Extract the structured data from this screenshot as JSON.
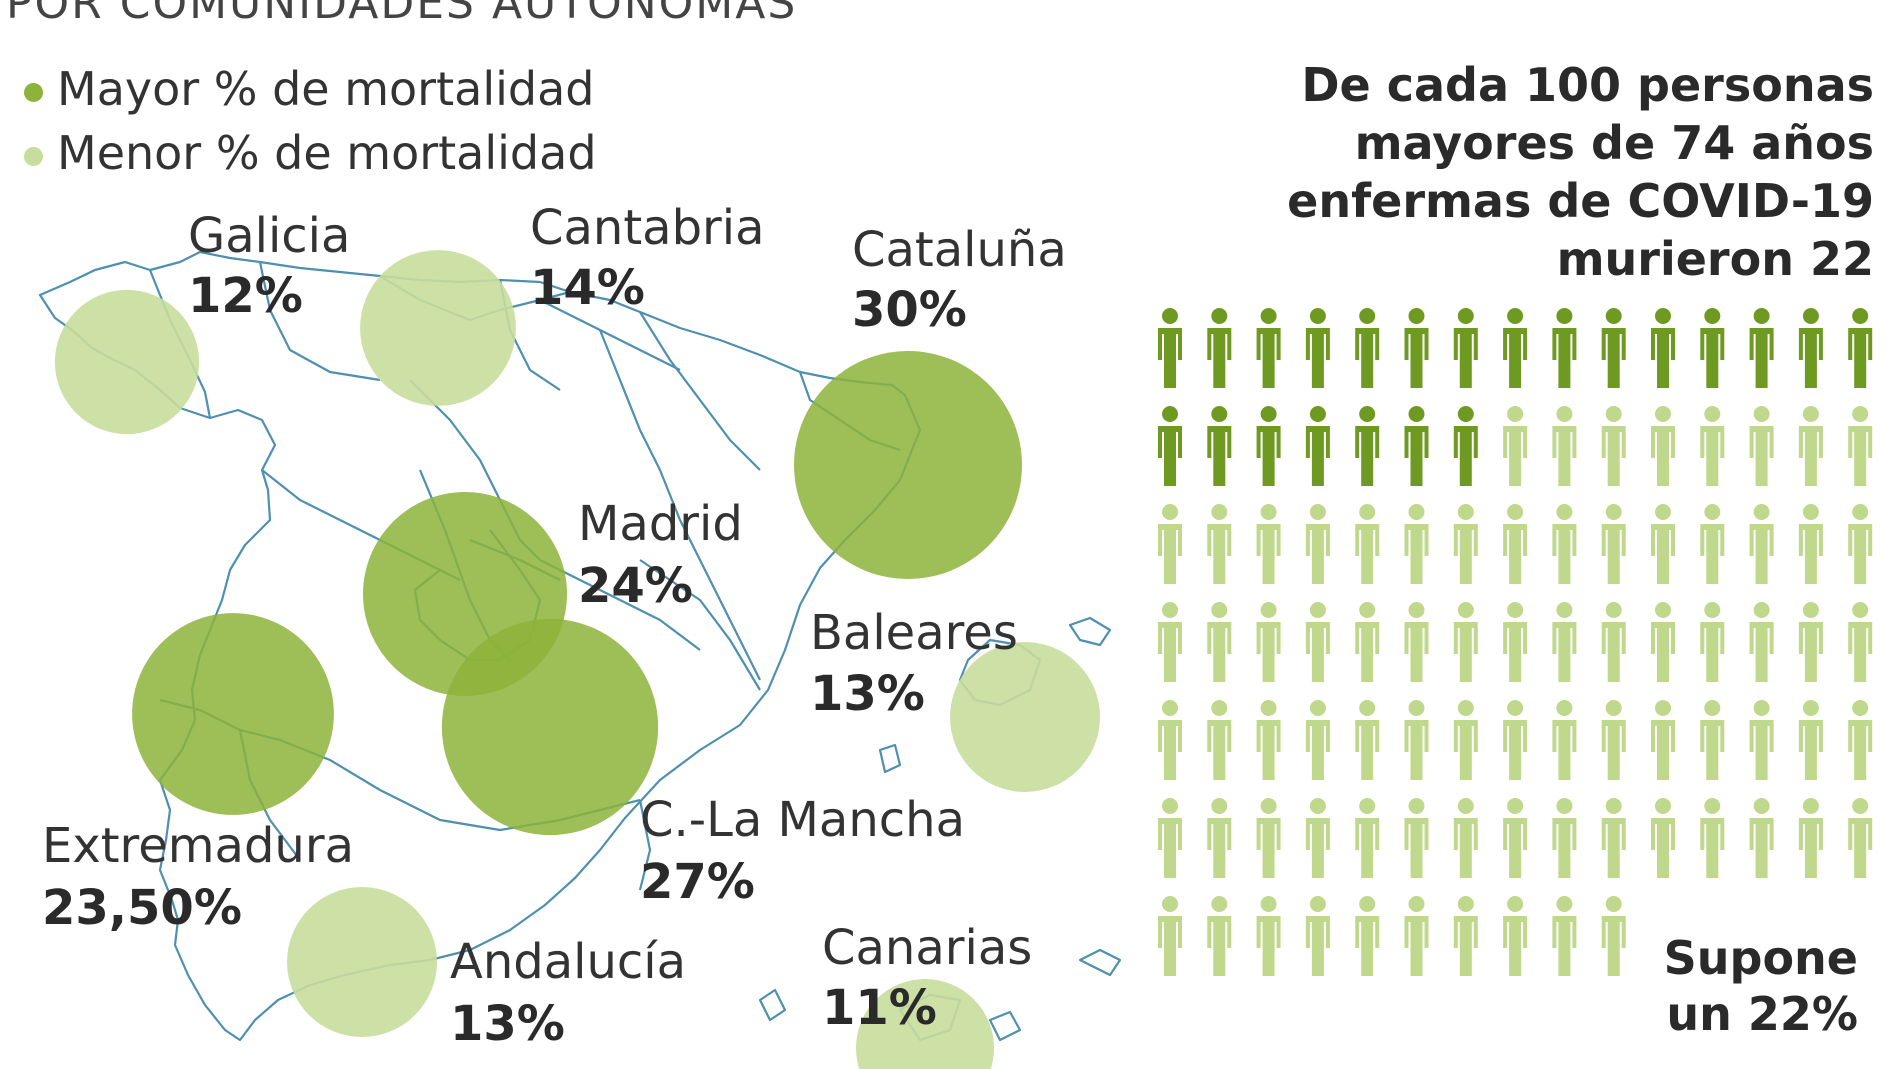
{
  "subtitle": "POR COMUNIDADES AUTÓNOMAS",
  "legend": {
    "higher": "Mayor % de mortalidad",
    "lower": "Menor % de mortalidad"
  },
  "colors": {
    "higher": "#8db33a",
    "lower": "#c8dd9c",
    "dead_icon": "#6f9a22",
    "alive_icon": "#bfd88c",
    "map_line": "#4f8fb0"
  },
  "headline": "De cada 100 personas mayores de 74 años enfermas de COVID-19 murieron 22",
  "footer": {
    "line1": "Supone",
    "line2": "un 22%"
  },
  "chart_data": [
    {
      "type": "bubble-map",
      "regions": [
        {
          "name": "Galicia",
          "label": "12%",
          "value": 12,
          "group": "lower"
        },
        {
          "name": "Cantabria",
          "label": "14%",
          "value": 14,
          "group": "lower"
        },
        {
          "name": "Cataluña",
          "label": "30%",
          "value": 30,
          "group": "higher"
        },
        {
          "name": "Madrid",
          "label": "24%",
          "value": 24,
          "group": "higher"
        },
        {
          "name": "Baleares",
          "label": "13%",
          "value": 13,
          "group": "lower"
        },
        {
          "name": "Extremadura",
          "label": "23,50%",
          "value": 23.5,
          "group": "higher"
        },
        {
          "name": "C.-La Mancha",
          "label": "27%",
          "value": 27,
          "group": "higher"
        },
        {
          "name": "Andalucía",
          "label": "13%",
          "value": 13,
          "group": "lower"
        },
        {
          "name": "Canarias",
          "label": "11%",
          "value": 11,
          "group": "lower"
        }
      ]
    },
    {
      "type": "pictogram",
      "total": 100,
      "highlighted": 22,
      "columns": 15
    }
  ]
}
